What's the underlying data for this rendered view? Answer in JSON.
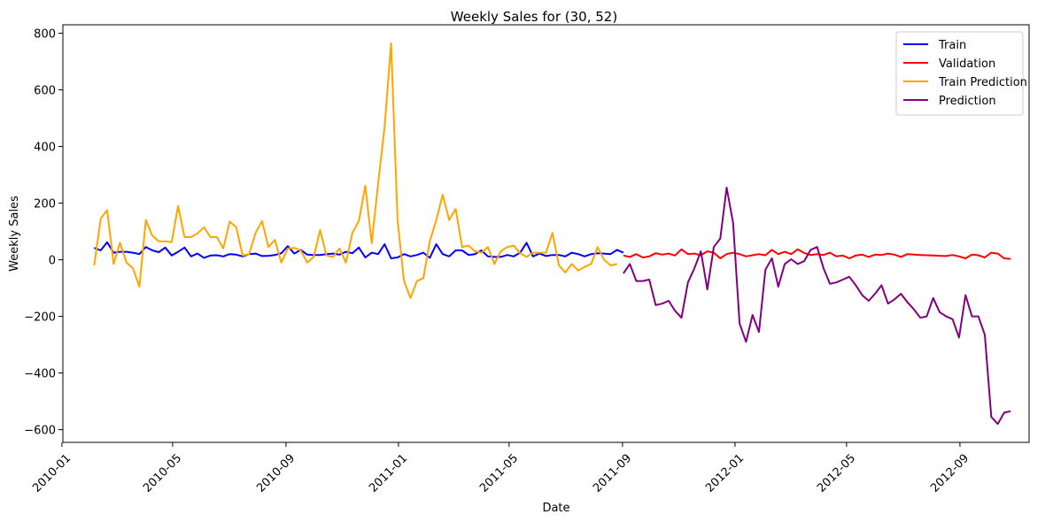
{
  "chart_data": {
    "type": "line",
    "title": "Weekly Sales for (30, 52)",
    "xlabel": "Date",
    "ylabel": "Weekly Sales",
    "x_axis": "date",
    "xlim": [
      "2010-01-02",
      "2012-11-15"
    ],
    "ylim": [
      -645,
      830
    ],
    "x_ticks": [
      "2010-01",
      "2010-05",
      "2010-09",
      "2011-01",
      "2011-05",
      "2011-09",
      "2012-01",
      "2012-05",
      "2012-09"
    ],
    "y_ticks": [
      -600,
      -400,
      -200,
      0,
      200,
      400,
      600,
      800
    ],
    "grid": false,
    "legend_position": "top-right",
    "colors": {
      "Train": "#0000ff",
      "Validation": "#ff0000",
      "Train Prediction": "#ffa500",
      "Prediction": "#800080"
    },
    "series": [
      {
        "name": "Train",
        "start": "2010-02-05",
        "step_days": 7,
        "values": [
          42,
          33,
          62,
          25,
          28,
          28,
          25,
          20,
          45,
          33,
          27,
          43,
          15,
          28,
          43,
          12,
          22,
          7,
          15,
          16,
          12,
          20,
          18,
          12,
          20,
          22,
          13,
          14,
          17,
          23,
          48,
          22,
          35,
          18,
          17,
          17,
          20,
          22,
          18,
          28,
          23,
          43,
          8,
          25,
          20,
          55,
          5,
          8,
          20,
          12,
          17,
          25,
          7,
          55,
          20,
          12,
          33,
          33,
          17,
          20,
          33,
          12,
          10,
          10,
          17,
          12,
          25,
          60,
          12,
          22,
          13,
          17,
          17,
          12,
          25,
          20,
          12,
          20,
          23,
          22,
          20,
          35,
          25
        ]
      },
      {
        "name": "Validation",
        "start": "2011-09-02",
        "step_days": 7,
        "values": [
          15,
          10,
          20,
          8,
          12,
          23,
          18,
          22,
          15,
          37,
          20,
          22,
          16,
          30,
          25,
          5,
          20,
          25,
          20,
          12,
          16,
          20,
          16,
          35,
          20,
          28,
          20,
          37,
          24,
          17,
          20,
          17,
          25,
          12,
          15,
          5,
          15,
          18,
          10,
          18,
          17,
          22,
          18,
          10,
          20,
          18,
          17,
          16,
          15,
          14,
          13,
          17,
          12,
          5,
          18,
          16,
          8,
          25,
          22,
          5,
          3
        ]
      },
      {
        "name": "Train Prediction",
        "start": "2010-02-05",
        "step_days": 7,
        "values": [
          -20,
          145,
          175,
          -15,
          60,
          -10,
          -30,
          -95,
          140,
          85,
          65,
          65,
          62,
          190,
          80,
          80,
          93,
          115,
          80,
          80,
          40,
          135,
          115,
          15,
          20,
          95,
          137,
          45,
          70,
          -10,
          40,
          42,
          33,
          -10,
          10,
          105,
          15,
          10,
          40,
          -10,
          95,
          137,
          262,
          58,
          270,
          470,
          765,
          140,
          -75,
          -135,
          -75,
          -65,
          65,
          140,
          230,
          140,
          180,
          45,
          50,
          30,
          25,
          45,
          -15,
          30,
          45,
          50,
          23,
          10,
          25,
          25,
          25,
          95,
          -20,
          -45,
          -15,
          -38,
          -25,
          -15,
          45,
          0,
          -20,
          -15
        ]
      },
      {
        "name": "Prediction",
        "start": "2011-09-02",
        "step_days": 7,
        "values": [
          -48,
          -15,
          -75,
          -75,
          -70,
          -160,
          -155,
          -145,
          -180,
          -205,
          -80,
          -30,
          30,
          -105,
          45,
          75,
          255,
          130,
          -225,
          -290,
          -195,
          -255,
          -35,
          5,
          -95,
          -15,
          2,
          -15,
          -5,
          35,
          45,
          -30,
          -85,
          -80,
          -70,
          -60,
          -90,
          -125,
          -145,
          -120,
          -90,
          -155,
          -140,
          -120,
          -150,
          -175,
          -205,
          -200,
          -135,
          -185,
          -200,
          -210,
          -275,
          -125,
          -200,
          -200,
          -265,
          -555,
          -580,
          -540,
          -535
        ]
      }
    ]
  }
}
